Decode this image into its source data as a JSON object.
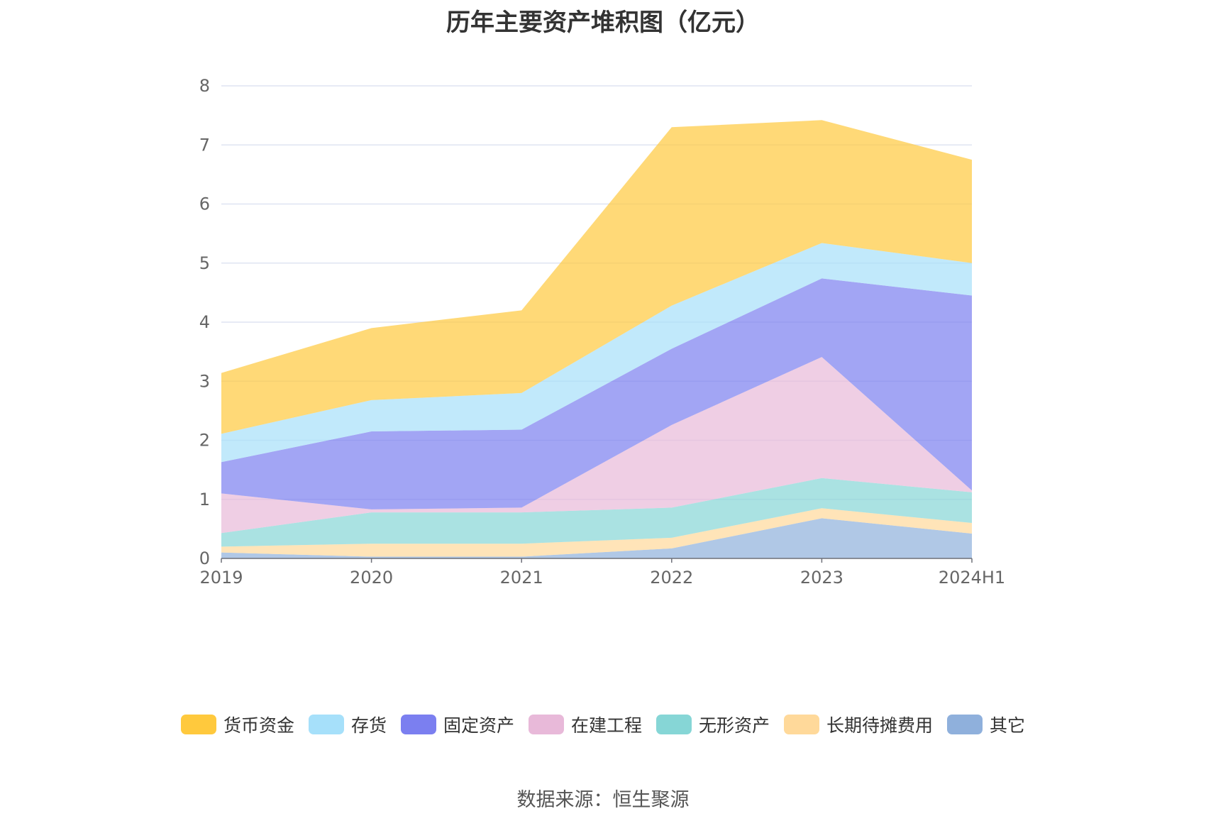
{
  "chart_data": {
    "type": "area",
    "stacked": true,
    "title": "历年主要资产堆积图（亿元）",
    "categories": [
      "2019",
      "2020",
      "2021",
      "2022",
      "2023",
      "2024H1"
    ],
    "ylim": [
      0,
      8
    ],
    "yticks": [
      "0",
      "1",
      "2",
      "3",
      "4",
      "5",
      "6",
      "7",
      "8"
    ],
    "grid": true,
    "legend_position": "bottom",
    "series": [
      {
        "name": "其它",
        "color": "#8fb0dc",
        "values": [
          0.1,
          0.03,
          0.03,
          0.17,
          0.68,
          0.42
        ]
      },
      {
        "name": "长期待摊费用",
        "color": "#ffd99a",
        "values": [
          0.1,
          0.22,
          0.22,
          0.18,
          0.17,
          0.18
        ]
      },
      {
        "name": "无形资产",
        "color": "#86d6d6",
        "values": [
          0.23,
          0.53,
          0.53,
          0.51,
          0.51,
          0.52
        ]
      },
      {
        "name": "在建工程",
        "color": "#e8b9d9",
        "values": [
          0.67,
          0.05,
          0.08,
          1.4,
          2.05,
          0.03
        ]
      },
      {
        "name": "固定资产",
        "color": "#7b7ff0",
        "values": [
          0.53,
          1.32,
          1.32,
          1.29,
          1.33,
          3.3
        ]
      },
      {
        "name": "存货",
        "color": "#a6e0fa",
        "values": [
          0.48,
          0.53,
          0.62,
          0.73,
          0.6,
          0.55
        ]
      },
      {
        "name": "货币资金",
        "color": "#ffc93d",
        "values": [
          1.03,
          1.22,
          1.4,
          3.02,
          2.08,
          1.75
        ]
      }
    ]
  },
  "legend_order": [
    "货币资金",
    "存货",
    "固定资产",
    "在建工程",
    "无形资产",
    "长期待摊费用",
    "其它"
  ],
  "source_text": "数据来源：恒生聚源"
}
